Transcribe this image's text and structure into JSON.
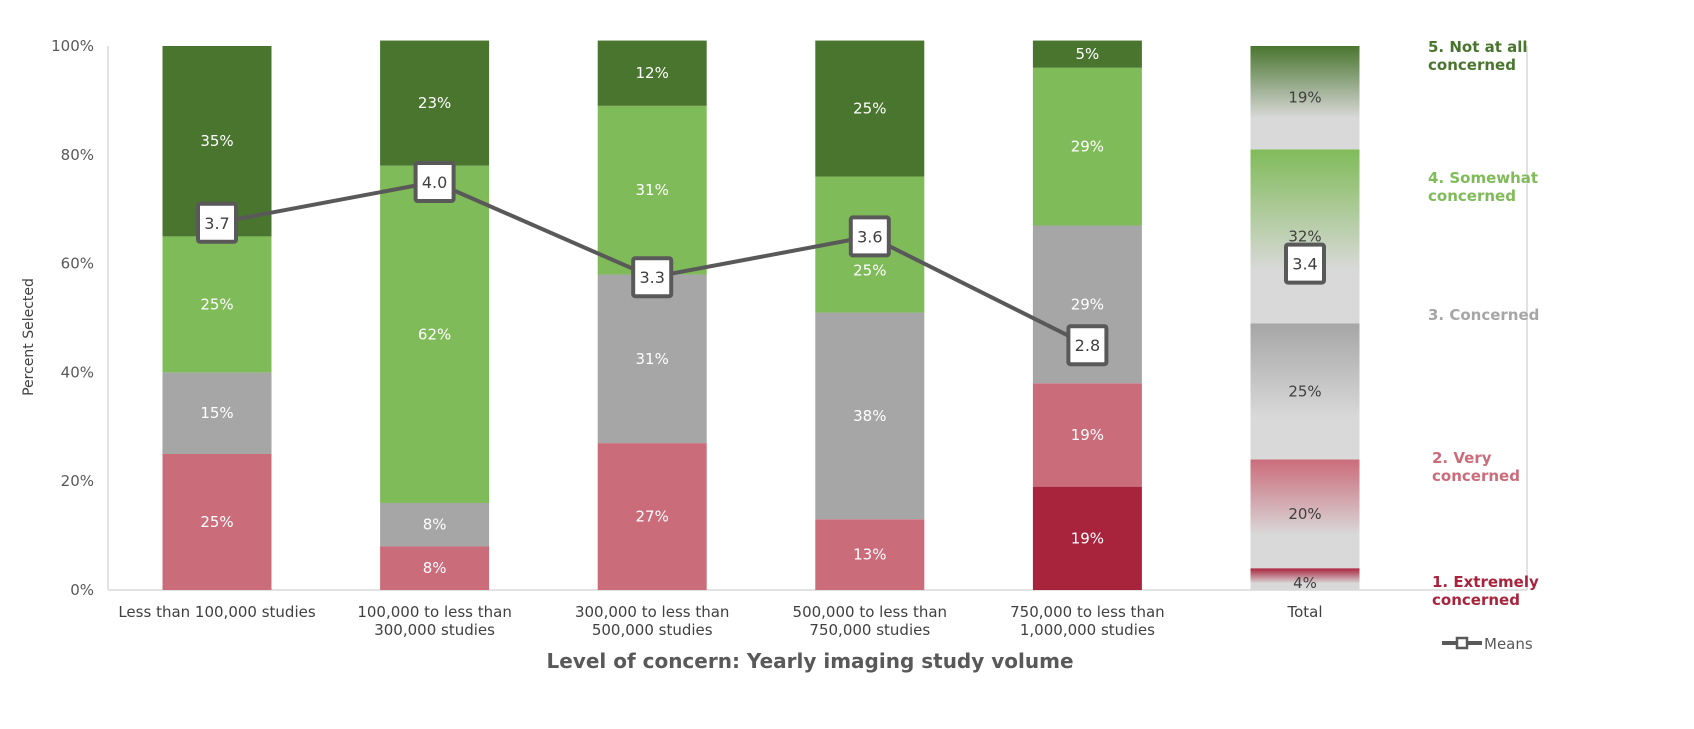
{
  "chart_data": {
    "type": "bar",
    "stacked": true,
    "title": "",
    "xlabel": "Level of concern: Yearly imaging study volume",
    "ylabel": "Percent Selected",
    "ylim": [
      0,
      100
    ],
    "yticks": [
      "0%",
      "20%",
      "40%",
      "60%",
      "80%",
      "100%"
    ],
    "categories": [
      [
        "Less than 100,000 studies"
      ],
      [
        "100,000 to less than",
        "300,000 studies"
      ],
      [
        "300,000 to less than",
        "500,000 studies"
      ],
      [
        "500,000 to less than",
        "750,000 studies"
      ],
      [
        "750,000 to less than",
        "1,000,000 studies"
      ],
      [
        "Total"
      ]
    ],
    "series": [
      {
        "name": "1. Extremely concerned",
        "legend": [
          "1. Extremely",
          "concerned"
        ],
        "color": "#a8243c",
        "values": [
          0,
          0,
          0,
          0,
          19,
          4
        ],
        "labels": [
          "",
          "",
          "",
          "",
          "19%",
          "4%"
        ]
      },
      {
        "name": "2. Very concerned",
        "legend": [
          "2. Very",
          "concerned"
        ],
        "color": "#cb6c7b",
        "values": [
          25,
          8,
          27,
          13,
          19,
          20
        ],
        "labels": [
          "25%",
          "8%",
          "27%",
          "13%",
          "19%",
          "20%"
        ]
      },
      {
        "name": "3. Concerned",
        "legend": [
          "3. Concerned"
        ],
        "color": "#a6a6a6",
        "values": [
          15,
          8,
          31,
          38,
          29,
          25
        ],
        "labels": [
          "15%",
          "8%",
          "31%",
          "38%",
          "29%",
          "25%"
        ]
      },
      {
        "name": "4. Somewhat concerned",
        "legend": [
          "4. Somewhat",
          "concerned"
        ],
        "color": "#80bb59",
        "values": [
          25,
          62,
          31,
          25,
          29,
          32
        ],
        "labels": [
          "25%",
          "62%",
          "31%",
          "25%",
          "29%",
          "32%"
        ]
      },
      {
        "name": "5. Not at all concerned",
        "legend": [
          "5. Not at all",
          "concerned"
        ],
        "color": "#4a752f",
        "values": [
          35,
          23,
          12,
          25,
          5,
          19
        ],
        "labels": [
          "35%",
          "23%",
          "12%",
          "25%",
          "5%",
          "19%"
        ]
      }
    ],
    "means": {
      "name": "Means",
      "secondary_ylim": [
        1,
        5
      ],
      "values": [
        3.7,
        4.0,
        3.3,
        3.6,
        2.8,
        3.4
      ],
      "labels": [
        "3.7",
        "4.0",
        "3.3",
        "3.6",
        "2.8",
        "3.4"
      ],
      "color": "#595959"
    },
    "total_gradient_fade": "#d9d9d9",
    "legend_placement": "right"
  }
}
